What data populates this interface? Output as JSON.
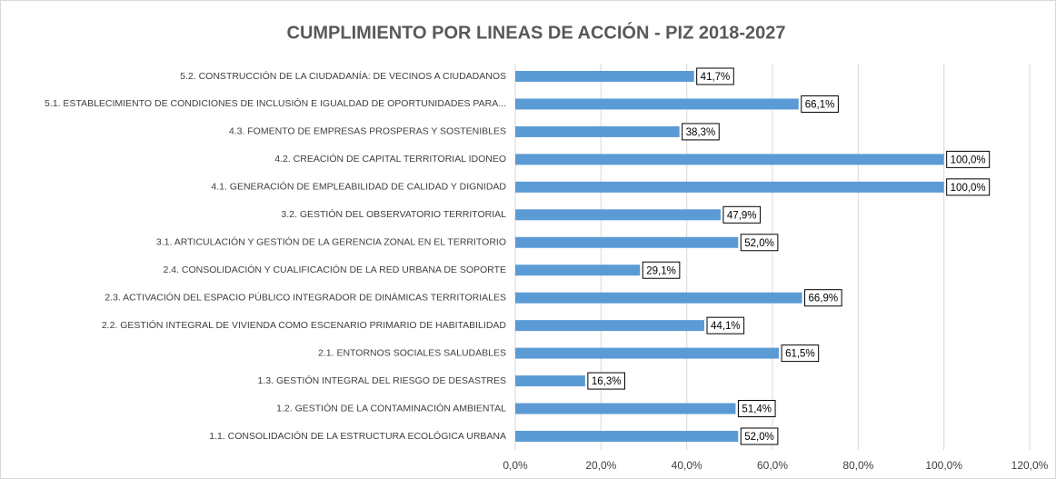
{
  "chart_data": {
    "type": "barh",
    "title": "CUMPLIMIENTO POR LINEAS DE ACCIÓN - PIZ 2018-2027",
    "categories": [
      "5.2. CONSTRUCCIÓN DE LA CIUDADANÍA: DE VECINOS A CIUDADANOS",
      "5.1. ESTABLECIMIENTO DE CONDICIONES DE INCLUSIÓN E IGUALDAD DE OPORTUNIDADES PARA...",
      "4.3. FOMENTO DE EMPRESAS PROSPERAS Y SOSTENIBLES",
      "4.2. CREACIÓN DE CAPITAL TERRITORIAL IDONEO",
      "4.1. GENERACIÓN  DE EMPLEABILIDAD DE CALIDAD Y DIGNIDAD",
      "3.2. GESTIÓN DEL OBSERVATORIO TERRITORIAL",
      "3.1. ARTICULACIÓN Y GESTIÓN DE LA GERENCIA ZONAL EN EL TERRITORIO",
      "2.4. CONSOLIDACIÓN Y CUALIFICACIÓN DE LA RED URBANA DE SOPORTE",
      "2.3. ACTIVACIÓN DEL ESPACIO PÚBLICO INTEGRADOR DE DINÁMICAS TERRITORIALES",
      "2.2. GESTIÓN INTEGRAL DE VIVIENDA COMO ESCENARIO PRIMARIO DE HABITABILIDAD",
      "2.1. ENTORNOS SOCIALES SALUDABLES",
      "1.3. GESTIÓN INTEGRAL DEL RIESGO DE DESASTRES",
      "1.2. GESTIÓN DE LA CONTAMINACIÓN AMBIENTAL",
      "1.1. CONSOLIDACIÓN DE LA ESTRUCTURA ECOLÓGICA URBANA"
    ],
    "values": [
      41.7,
      66.1,
      38.3,
      100,
      100,
      47.9,
      52,
      29.1,
      66.9,
      44.1,
      61.5,
      16.3,
      51.4,
      52
    ],
    "value_labels": [
      "41,7%",
      "66,1%",
      "38,3%",
      "100,0%",
      "100,0%",
      "47,9%",
      "52,0%",
      "29,1%",
      "66,9%",
      "44,1%",
      "61,5%",
      "16,3%",
      "51,4%",
      "52,0%"
    ],
    "color": "#5b9bd5",
    "xlim": [
      0,
      120
    ],
    "xticks": [
      {
        "value": 0,
        "label": "0,0%"
      },
      {
        "value": 20,
        "label": "20,0%"
      },
      {
        "value": 40,
        "label": "40,0%"
      },
      {
        "value": 60,
        "label": "60,0%"
      },
      {
        "value": 80,
        "label": "80,0%"
      },
      {
        "value": 100,
        "label": "100,0%"
      },
      {
        "value": 120,
        "label": "120,0%"
      }
    ],
    "grid": true
  }
}
